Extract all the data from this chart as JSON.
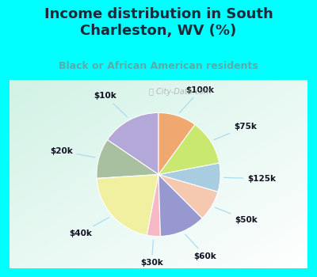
{
  "title": "Income distribution in South\nCharleston, WV (%)",
  "subtitle": "Black or African American residents",
  "title_color": "#1a2a3a",
  "subtitle_color": "#5aacac",
  "bg_cyan": "#00ffff",
  "labels": [
    "$10k",
    "$20k",
    "$40k",
    "$30k",
    "$60k",
    "$50k",
    "$125k",
    "$75k",
    "$100k"
  ],
  "values": [
    15.5,
    10.5,
    21.0,
    3.5,
    12.0,
    8.0,
    7.5,
    12.0,
    10.0
  ],
  "colors": [
    "#b3a8d8",
    "#a8c0a0",
    "#f0f0a0",
    "#f5b8c4",
    "#9898d0",
    "#f5c8b0",
    "#a8cce0",
    "#c8e870",
    "#f0a870"
  ],
  "startangle": 90,
  "watermark": "ⓘ City-Data.com",
  "title_fontsize": 13,
  "subtitle_fontsize": 9,
  "label_fontsize": 7.5
}
